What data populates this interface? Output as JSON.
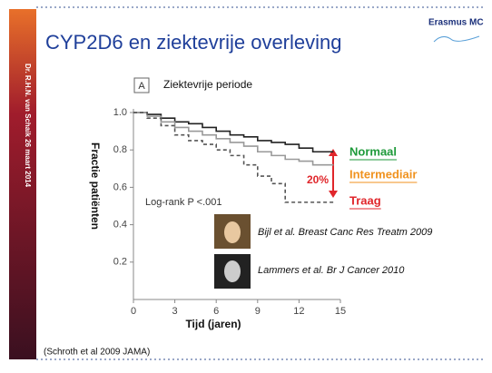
{
  "slide_title": "CYP2D6 en ziektevrije overleving",
  "logo": "Erasmus MC",
  "sidebar": "Dr. R.H.N. van Schaik 26 maart 2014",
  "footnote": "(Schroth et al 2009 JAMA)",
  "citations": [
    "Bijl et al. Breast Canc Res Treatm 2009",
    "Lammers et al. Br J Cancer 2010"
  ],
  "chart_data": {
    "type": "step",
    "panel_label": "A",
    "title": "Ziektevrije periode",
    "x_label": "Tijd (jaren)",
    "y_label": "Fractie patiënten",
    "annotations": [
      "Log-rank P <.001",
      "20%"
    ],
    "x": [
      0,
      1,
      2,
      3,
      4,
      5,
      6,
      7,
      8,
      9,
      10,
      11,
      12,
      13,
      14.5
    ],
    "series": [
      {
        "name": "Normaal",
        "color": "#222222",
        "label_color": "#1e9a3a",
        "line_style": "solid",
        "values": [
          1,
          0.99,
          0.97,
          0.95,
          0.94,
          0.92,
          0.9,
          0.88,
          0.87,
          0.85,
          0.84,
          0.83,
          0.81,
          0.79,
          0.79
        ]
      },
      {
        "name": "Intermediair",
        "color": "#999999",
        "label_color": "#f0921e",
        "line_style": "solid",
        "values": [
          1,
          0.98,
          0.95,
          0.92,
          0.9,
          0.88,
          0.86,
          0.84,
          0.82,
          0.79,
          0.77,
          0.75,
          0.74,
          0.72,
          0.72
        ]
      },
      {
        "name": "Traag",
        "color": "#555555",
        "label_color": "#e0262b",
        "line_style": "dashed",
        "values": [
          1,
          0.97,
          0.93,
          0.88,
          0.85,
          0.83,
          0.8,
          0.77,
          0.72,
          0.66,
          0.62,
          0.52,
          0.52,
          0.52,
          0.52
        ]
      }
    ],
    "xlim": [
      0,
      15
    ],
    "xticks": [
      0,
      3,
      6,
      9,
      12,
      15
    ],
    "ylim": [
      0,
      1
    ],
    "yticks": [
      0.2,
      0.4,
      0.6,
      0.8,
      {
        "value": 1,
        "label": "1.0"
      }
    ]
  }
}
